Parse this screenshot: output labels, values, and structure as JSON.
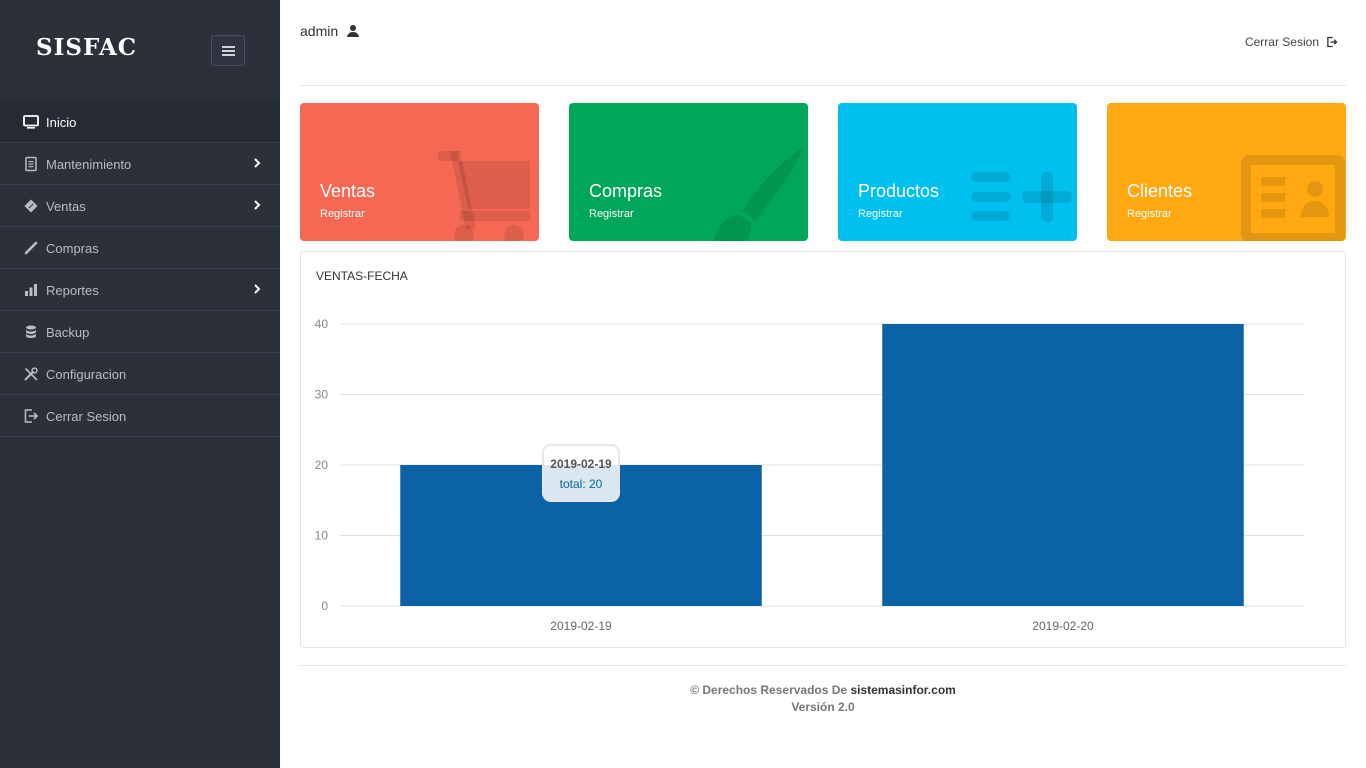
{
  "brand": {
    "name": "SISFAC"
  },
  "sidebar": {
    "items": [
      {
        "label": "Inicio",
        "icon": "monitor-icon",
        "active": true,
        "has_children": false
      },
      {
        "label": "Mantenimiento",
        "icon": "document-icon",
        "active": false,
        "has_children": true
      },
      {
        "label": "Ventas",
        "icon": "tag-icon",
        "active": false,
        "has_children": true
      },
      {
        "label": "Compras",
        "icon": "pencil-icon",
        "active": false,
        "has_children": false
      },
      {
        "label": "Reportes",
        "icon": "bar-chart-icon",
        "active": false,
        "has_children": true
      },
      {
        "label": "Backup",
        "icon": "database-icon",
        "active": false,
        "has_children": false
      },
      {
        "label": "Configuracion",
        "icon": "tools-icon",
        "active": false,
        "has_children": false
      },
      {
        "label": "Cerrar Sesion",
        "icon": "logout-icon",
        "active": false,
        "has_children": false
      }
    ]
  },
  "header": {
    "user": "admin",
    "logout_label": "Cerrar Sesion"
  },
  "tiles": [
    {
      "title": "Ventas",
      "subtitle": "Registrar",
      "color": "#f56954",
      "icon": "cart-icon"
    },
    {
      "title": "Compras",
      "subtitle": "Registrar",
      "color": "#00a65a",
      "icon": "brush-icon"
    },
    {
      "title": "Productos",
      "subtitle": "Registrar",
      "color": "#00c0ef",
      "icon": "list-add-icon"
    },
    {
      "title": "Clientes",
      "subtitle": "Registrar",
      "color": "#ffa812",
      "icon": "id-card-icon"
    }
  ],
  "panel": {
    "title": "VENTAS-FECHA"
  },
  "chart_data": {
    "type": "bar",
    "categories": [
      "2019-02-19",
      "2019-02-20"
    ],
    "values": [
      20,
      40
    ],
    "ylim": [
      0,
      40
    ],
    "yticks": [
      0,
      10,
      20,
      30,
      40
    ],
    "bar_color": "#0b62a4",
    "grid": true,
    "tooltip": {
      "title": "2019-02-19",
      "label": "total: 20"
    }
  },
  "footer": {
    "prefix": "© Derechos Reservados De ",
    "site": "sistemasinfor.com",
    "version": "Versión 2.0"
  }
}
